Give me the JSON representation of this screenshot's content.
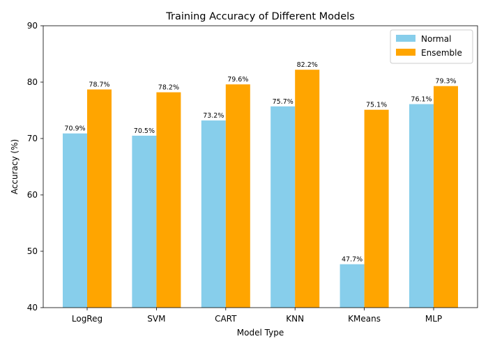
{
  "chart_data": {
    "type": "bar",
    "title": "Training Accuracy of Different Models",
    "xlabel": "Model Type",
    "ylabel": "Accuracy (%)",
    "categories": [
      "LogReg",
      "SVM",
      "CART",
      "KNN",
      "KMeans",
      "MLP"
    ],
    "series": [
      {
        "name": "Normal",
        "color": "#87CEEB",
        "values": [
          70.9,
          70.5,
          73.2,
          75.7,
          47.7,
          76.1
        ],
        "labels": [
          "70.9%",
          "70.5%",
          "73.2%",
          "75.7%",
          "47.7%",
          "76.1%"
        ]
      },
      {
        "name": "Ensemble",
        "color": "#FFA500",
        "values": [
          78.7,
          78.2,
          79.6,
          82.2,
          75.1,
          79.3
        ],
        "labels": [
          "78.7%",
          "78.2%",
          "79.6%",
          "82.2%",
          "75.1%",
          "79.3%"
        ]
      }
    ],
    "ylim": [
      40,
      90
    ],
    "yticks": [
      "40",
      "50",
      "60",
      "70",
      "80",
      "90"
    ],
    "grid": false,
    "legend_position": "top-right"
  }
}
